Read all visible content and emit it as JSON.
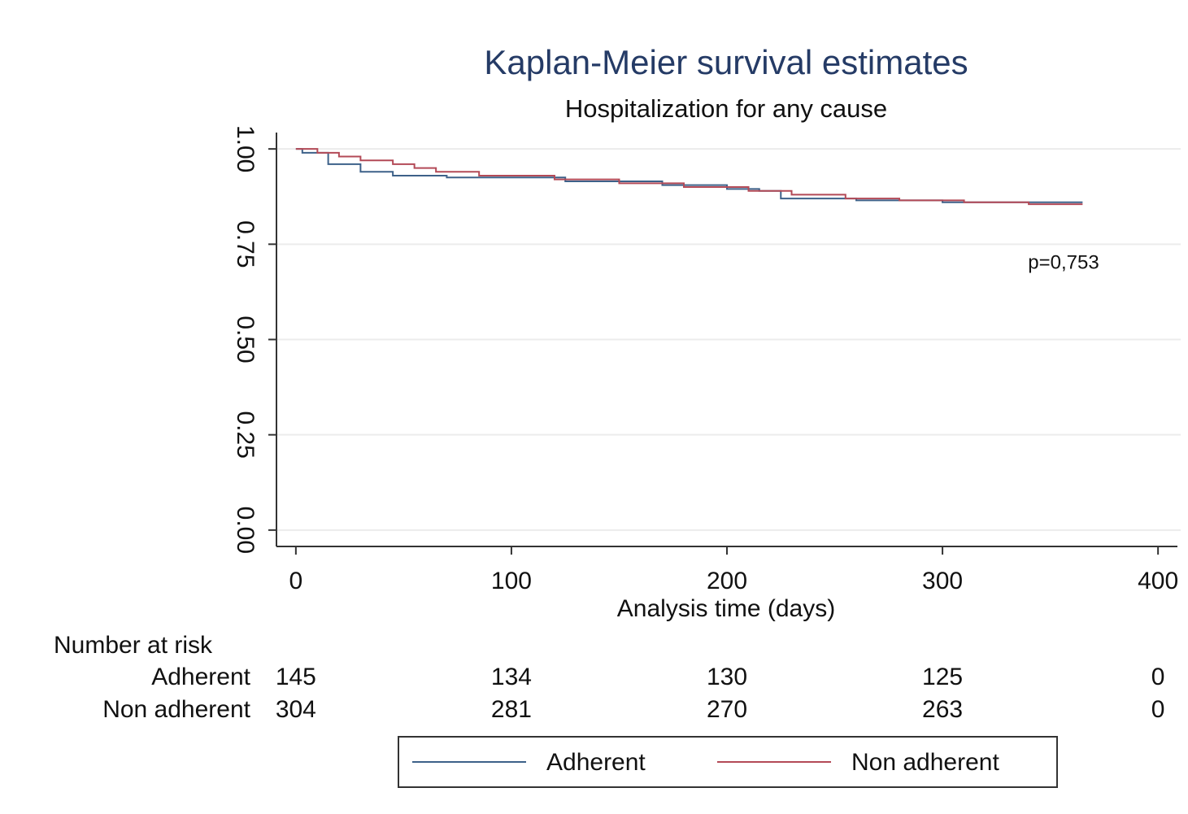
{
  "chart_data": {
    "type": "line",
    "title": "Kaplan-Meier survival estimates",
    "subtitle": "Hospitalization for any cause",
    "x_label": "Analysis time (days)",
    "xlim": [
      -9,
      409
    ],
    "ylim": [
      -0.043,
      1.043
    ],
    "xticks": [
      0,
      100,
      200,
      300,
      400
    ],
    "yticks": [
      {
        "value": 0,
        "label": "0.00"
      },
      0.25,
      {
        "value": 0.5,
        "label": "0.50"
      },
      0.75,
      {
        "value": 1,
        "label": "1.00"
      }
    ],
    "grid": true,
    "annotation": "p=0,753",
    "series": [
      {
        "name": "Adherent",
        "color": "#3d6189",
        "x": [
          0,
          3,
          3,
          15,
          15,
          30,
          30,
          45,
          45,
          70,
          70,
          125,
          125,
          170,
          170,
          200,
          200,
          215,
          215,
          225,
          225,
          260,
          260,
          300,
          300,
          365
        ],
        "values": [
          1,
          1,
          0.99,
          0.99,
          0.96,
          0.96,
          0.94,
          0.94,
          0.93,
          0.93,
          0.925,
          0.925,
          0.915,
          0.915,
          0.905,
          0.905,
          0.895,
          0.895,
          0.89,
          0.89,
          0.87,
          0.87,
          0.865,
          0.865,
          0.86,
          0.86
        ]
      },
      {
        "name": "Non adherent",
        "color": "#b34a57",
        "x": [
          0,
          10,
          10,
          20,
          20,
          30,
          30,
          45,
          45,
          55,
          55,
          65,
          65,
          85,
          85,
          120,
          120,
          150,
          150,
          180,
          180,
          210,
          210,
          230,
          230,
          255,
          255,
          280,
          280,
          310,
          310,
          340,
          340,
          365
        ],
        "values": [
          1,
          1,
          0.99,
          0.99,
          0.98,
          0.98,
          0.97,
          0.97,
          0.96,
          0.96,
          0.95,
          0.95,
          0.94,
          0.94,
          0.93,
          0.93,
          0.92,
          0.92,
          0.91,
          0.91,
          0.9,
          0.9,
          0.89,
          0.89,
          0.88,
          0.88,
          0.87,
          0.87,
          0.865,
          0.865,
          0.86,
          0.86,
          0.855,
          0.855
        ]
      }
    ],
    "risk_table": {
      "title": "Number at risk",
      "rows": [
        {
          "name": "Adherent",
          "values": [
            145,
            134,
            130,
            125,
            0
          ]
        },
        {
          "name": "Non adherent",
          "values": [
            304,
            281,
            270,
            263,
            0
          ]
        }
      ]
    }
  }
}
